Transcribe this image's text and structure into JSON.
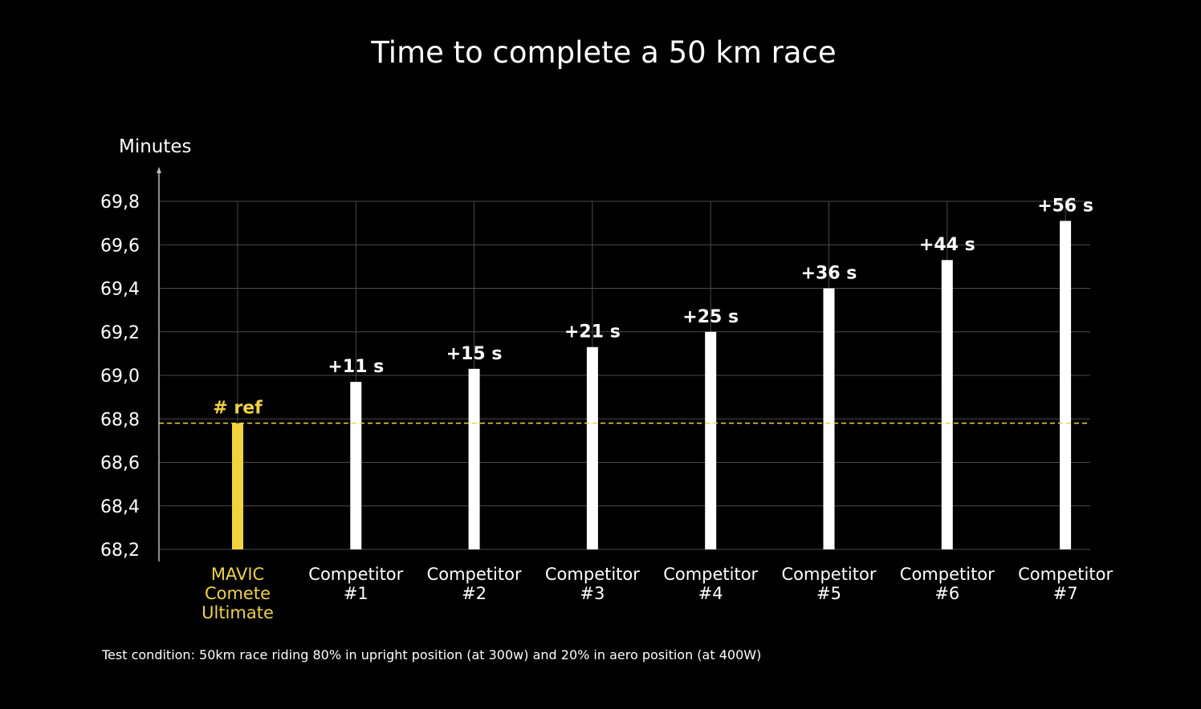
{
  "chart_data": {
    "type": "bar",
    "title": "Time to complete a 50 km race",
    "ylabel": "Minutes",
    "xlabel": "",
    "ylim": [
      68.2,
      69.8
    ],
    "yticks": [
      "68,2",
      "68,4",
      "68,6",
      "68,8",
      "69,0",
      "69,2",
      "69,4",
      "69,6",
      "69,8"
    ],
    "ytick_values": [
      68.2,
      68.4,
      68.6,
      68.8,
      69.0,
      69.2,
      69.4,
      69.6,
      69.8
    ],
    "grid": true,
    "categories": [
      [
        "MAVIC",
        "Comete",
        "Ultimate"
      ],
      [
        "Competitor",
        "#1"
      ],
      [
        "Competitor",
        "#2"
      ],
      [
        "Competitor",
        "#3"
      ],
      [
        "Competitor",
        "#4"
      ],
      [
        "Competitor",
        "#5"
      ],
      [
        "Competitor",
        "#6"
      ],
      [
        "Competitor",
        "#7"
      ]
    ],
    "values": [
      68.78,
      68.97,
      69.03,
      69.13,
      69.2,
      69.4,
      69.53,
      69.71
    ],
    "data_labels": [
      "# ref",
      "+11 s",
      "+15 s",
      "+21 s",
      "+25 s",
      "+36 s",
      "+44 s",
      "+56 s"
    ],
    "reference_line": {
      "value": 68.78,
      "style": "dashed"
    },
    "highlight_index": 0,
    "footnote": "Test condition: 50km race riding 80% in upright position (at 300w) and 20% in aero position (at 400W)"
  },
  "colors": {
    "background": "#000000",
    "text": "#ffffff",
    "grid": "#4a4a4a",
    "axis": "#bbbbbb",
    "bar": "#ffffff",
    "highlight": "#f2d33a"
  }
}
